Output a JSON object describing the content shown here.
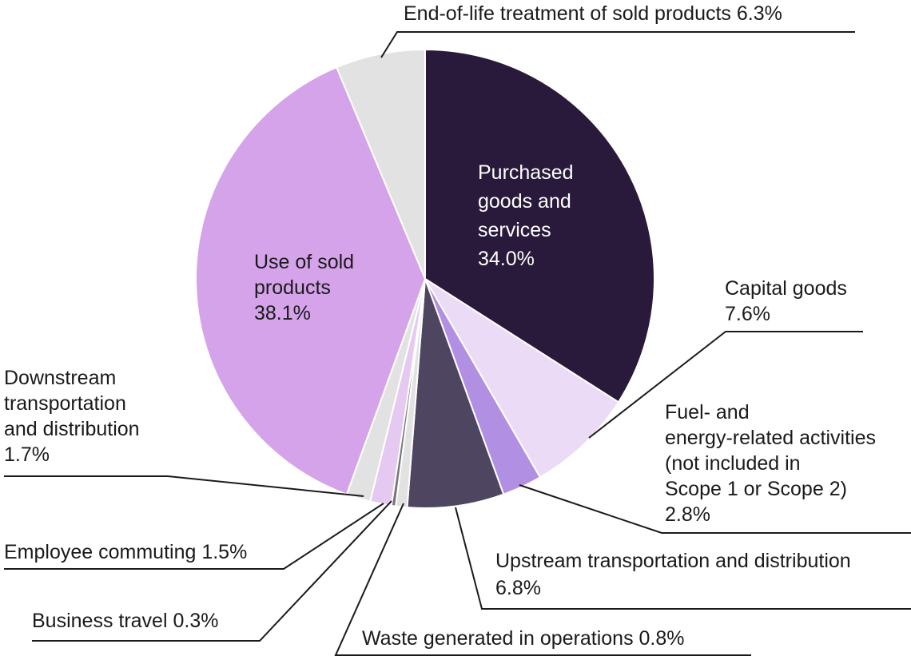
{
  "chart_data": {
    "type": "pie",
    "title": "",
    "start_angle_deg": 0,
    "direction": "clockwise",
    "slices": [
      {
        "label": "Purchased goods and services",
        "value": 34.0,
        "display": "34.0%",
        "color": "#291a3b",
        "label_inside": true,
        "text_color": "#ffffff"
      },
      {
        "label": "Capital goods",
        "value": 7.6,
        "display": "7.6%",
        "color": "#ebdbf7",
        "label_inside": false
      },
      {
        "label": "Fuel- and energy-related activities (not included in Scope 1 or Scope 2)",
        "value": 2.8,
        "display": "2.8%",
        "color": "#b18fe3",
        "label_inside": false
      },
      {
        "label": "Upstream transportation and distribution",
        "value": 6.8,
        "display": "6.8%",
        "color": "#4e4660",
        "label_inside": false
      },
      {
        "label": "Waste generated in operations",
        "value": 0.8,
        "display": "0.8%",
        "color": "#e2e2e2",
        "label_inside": false
      },
      {
        "label": "Business travel",
        "value": 0.3,
        "display": "0.3%",
        "color": "#777777",
        "label_inside": false
      },
      {
        "label": "Employee commuting",
        "value": 1.5,
        "display": "1.5%",
        "color": "#e6c9f1",
        "label_inside": false
      },
      {
        "label": "Downstream transportation and distribution",
        "value": 1.7,
        "display": "1.7%",
        "color": "#e2e2e2",
        "label_inside": false
      },
      {
        "label": "Use of sold products",
        "value": 38.1,
        "display": "38.1%",
        "color": "#d4a3ea",
        "label_inside": true,
        "text_color": "#1a1a1a"
      },
      {
        "label": "End-of-life treatment of sold products",
        "value": 6.3,
        "display": "6.3%",
        "color": "#e2e2e2",
        "label_inside": false
      }
    ],
    "label_text": {
      "purchased": [
        "Purchased",
        "goods and",
        "services",
        "34.0%"
      ],
      "capital": [
        "Capital goods",
        "7.6%"
      ],
      "fuel": [
        "Fuel- and",
        "energy-related activities",
        "(not included in",
        "Scope 1 or Scope 2)",
        "2.8%"
      ],
      "upstream": [
        "Upstream transportation and distribution",
        "6.8%"
      ],
      "waste": [
        "Waste generated in operations  0.8%"
      ],
      "business": [
        "Business travel  0.3%"
      ],
      "commuting": [
        "Employee commuting  1.5%"
      ],
      "downstream": [
        "Downstream",
        "transportation",
        "and distribution",
        "1.7%"
      ],
      "use": [
        "Use of sold",
        "products",
        "38.1%"
      ],
      "eol": [
        "End-of-life treatment of sold products  6.3%"
      ]
    }
  }
}
